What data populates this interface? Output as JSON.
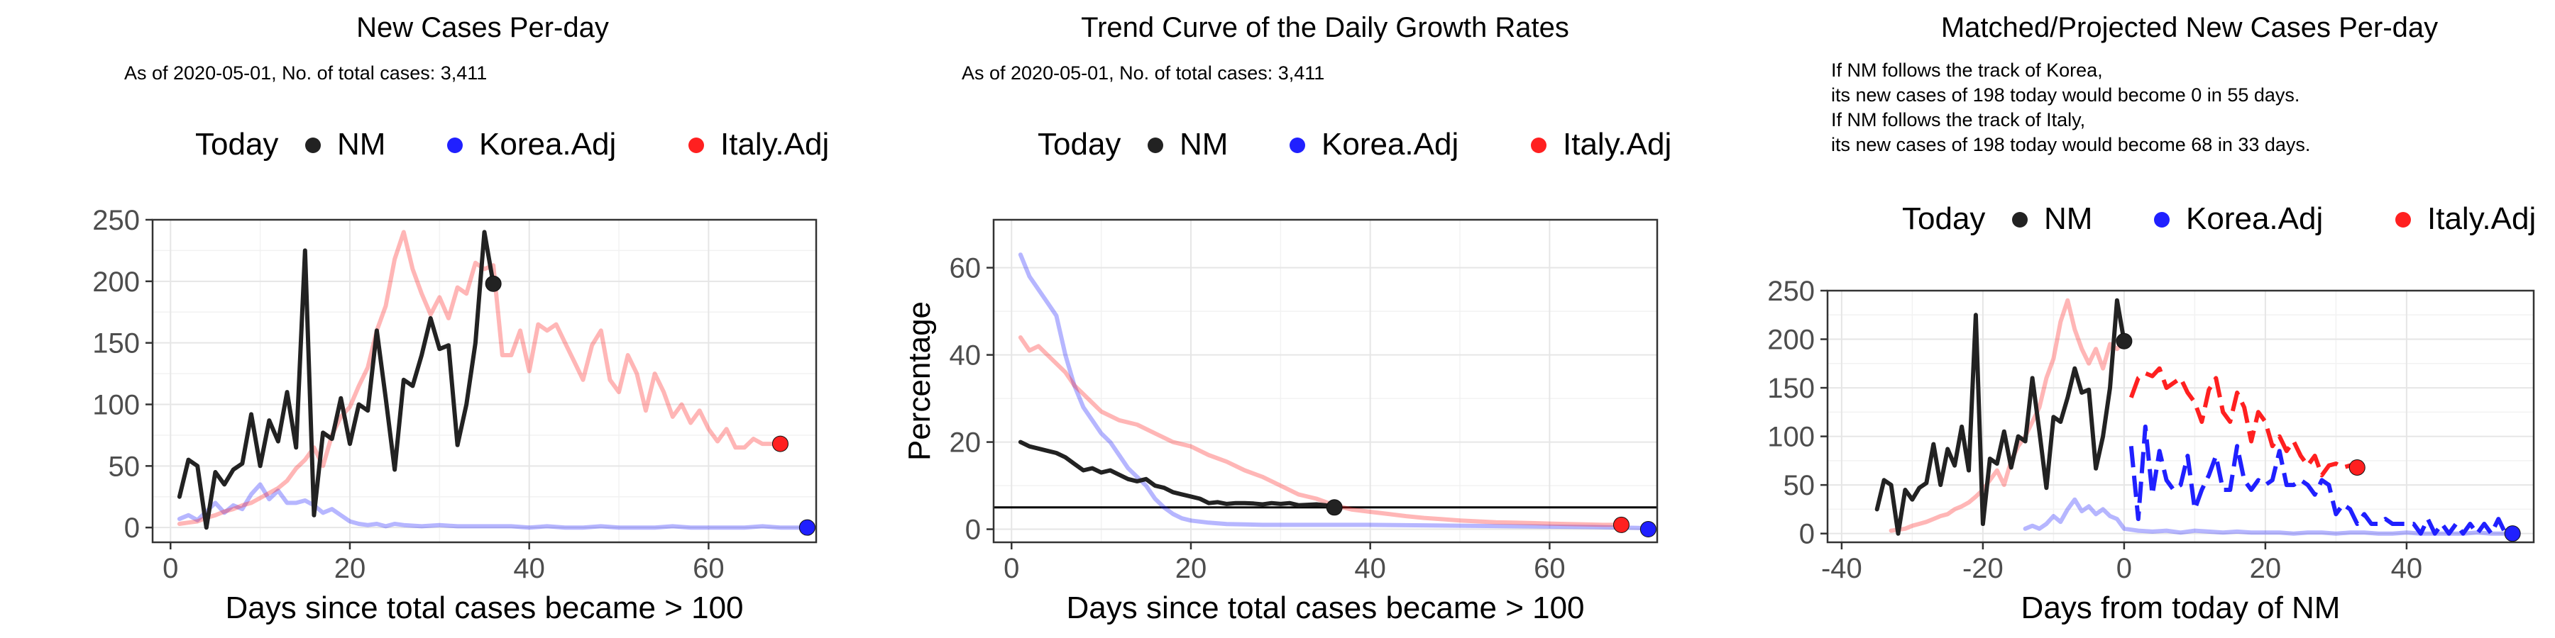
{
  "colors": {
    "nm": "#222222",
    "korea": "#2020ff",
    "italy": "#ff2020",
    "grid": "#e6e6e6",
    "legend_label": "#000000"
  },
  "legend_labels": [
    "Today",
    "NM",
    "Korea.Adj",
    "Italy.Adj"
  ],
  "chart_data": [
    {
      "type": "line",
      "title": "New Cases Per-day",
      "subtitle": [
        "As of 2020-05-01, No. of total cases: 3,411"
      ],
      "xlabel": "Days since total cases became > 100",
      "ylabel": "",
      "xlim": [
        -2,
        72
      ],
      "ylim": [
        -12,
        250
      ],
      "xticks": [
        0,
        20,
        40,
        60
      ],
      "yticks": [
        0,
        50,
        100,
        150,
        200,
        250
      ],
      "grid": true,
      "legend_position": "top",
      "series": [
        {
          "name": "NM",
          "style": "solid",
          "x": [
            1,
            2,
            3,
            4,
            5,
            6,
            7,
            8,
            9,
            10,
            11,
            12,
            13,
            14,
            15,
            16,
            17,
            18,
            19,
            20,
            21,
            22,
            23,
            24,
            25,
            26,
            27,
            28,
            29,
            30,
            31,
            32,
            33,
            34,
            35,
            36
          ],
          "y": [
            25,
            55,
            50,
            0,
            45,
            35,
            47,
            52,
            92,
            50,
            87,
            70,
            110,
            65,
            225,
            10,
            77,
            72,
            105,
            68,
            100,
            95,
            160,
            105,
            47,
            120,
            115,
            140,
            170,
            145,
            148,
            67,
            100,
            150,
            240,
            198
          ]
        },
        {
          "name": "Korea.Adj",
          "style": "faded",
          "x": [
            1,
            2,
            3,
            5,
            6,
            7,
            8,
            9,
            10,
            11,
            12,
            13,
            14,
            15,
            16,
            17,
            18,
            19,
            20,
            21,
            22,
            23,
            24,
            25,
            26,
            28,
            30,
            32,
            34,
            36,
            38,
            40,
            42,
            44,
            46,
            48,
            50,
            52,
            54,
            56,
            58,
            60,
            62,
            64,
            66,
            68,
            70,
            71
          ],
          "y": [
            7,
            10,
            6,
            20,
            12,
            18,
            15,
            27,
            35,
            23,
            30,
            20,
            20,
            22,
            18,
            12,
            15,
            10,
            5,
            3,
            2,
            3,
            1,
            3,
            2,
            1,
            2,
            1,
            1,
            1,
            1,
            0,
            1,
            0,
            0,
            1,
            0,
            0,
            0,
            1,
            0,
            0,
            0,
            0,
            1,
            0,
            0,
            0
          ]
        },
        {
          "name": "Italy.Adj",
          "style": "faded",
          "x": [
            1,
            2,
            3,
            4,
            5,
            6,
            7,
            8,
            9,
            10,
            11,
            12,
            13,
            14,
            15,
            16,
            17,
            18,
            19,
            20,
            21,
            22,
            23,
            24,
            25,
            26,
            27,
            28,
            29,
            30,
            31,
            32,
            33,
            34,
            35,
            36,
            37,
            38,
            39,
            40,
            41,
            42,
            43,
            44,
            45,
            46,
            47,
            48,
            49,
            50,
            51,
            52,
            53,
            54,
            55,
            56,
            57,
            58,
            59,
            60,
            61,
            62,
            63,
            64,
            65,
            66,
            67,
            68
          ],
          "y": [
            3,
            4,
            5,
            8,
            10,
            13,
            15,
            18,
            20,
            24,
            28,
            32,
            38,
            48,
            55,
            65,
            50,
            75,
            90,
            98,
            115,
            130,
            160,
            180,
            218,
            240,
            210,
            190,
            173,
            187,
            170,
            195,
            190,
            215,
            210,
            213,
            140,
            140,
            160,
            127,
            165,
            160,
            165,
            150,
            135,
            120,
            148,
            160,
            120,
            110,
            140,
            125,
            95,
            125,
            110,
            90,
            100,
            85,
            95,
            80,
            70,
            80,
            65,
            65,
            72,
            68,
            68,
            68
          ]
        },
        {
          "name": "Today",
          "style": "points",
          "x": [
            36,
            71,
            68
          ],
          "y": [
            198,
            0,
            68
          ],
          "colors": [
            "nm",
            "korea",
            "italy"
          ]
        }
      ]
    },
    {
      "type": "line",
      "title": "Trend Curve of the Daily Growth Rates",
      "subtitle": [
        "As of 2020-05-01, No. of total cases: 3,411"
      ],
      "xlabel": "Days since total cases became > 100",
      "ylabel": "Percentage",
      "xlim": [
        -2,
        72
      ],
      "ylim": [
        -3,
        71
      ],
      "xticks": [
        0,
        20,
        40,
        60
      ],
      "yticks": [
        0,
        20,
        40,
        60
      ],
      "hline": 5,
      "grid": true,
      "legend_position": "top",
      "series": [
        {
          "name": "NM",
          "style": "solid",
          "x": [
            1,
            2,
            3,
            4,
            5,
            6,
            7,
            8,
            9,
            10,
            11,
            12,
            13,
            14,
            15,
            16,
            17,
            18,
            19,
            20,
            21,
            22,
            23,
            24,
            25,
            26,
            27,
            28,
            29,
            30,
            31,
            32,
            33,
            34,
            35,
            36
          ],
          "y": [
            20,
            19,
            18.5,
            18,
            17.5,
            16.5,
            15,
            13.5,
            14,
            13,
            13.5,
            12.5,
            11.5,
            11,
            11.5,
            10,
            9.5,
            8.5,
            8,
            7.5,
            7,
            6,
            6.2,
            5.8,
            6,
            6,
            5.9,
            5.7,
            6,
            5.8,
            6,
            5.5,
            5.6,
            5.7,
            5.5,
            5
          ]
        },
        {
          "name": "Korea.Adj",
          "style": "faded",
          "x": [
            1,
            2,
            3,
            4,
            5,
            6,
            7,
            8,
            9,
            10,
            11,
            12,
            13,
            14,
            15,
            16,
            17,
            18,
            19,
            20,
            22,
            24,
            26,
            28,
            30,
            35,
            40,
            45,
            50,
            55,
            60,
            65,
            70,
            71
          ],
          "y": [
            63,
            58,
            55,
            52,
            49,
            40,
            33,
            28,
            25,
            22,
            20,
            17,
            14,
            12,
            10,
            7,
            5,
            3.5,
            2.5,
            2,
            1.5,
            1.2,
            1.1,
            1,
            1,
            1,
            1,
            0.9,
            0.8,
            0.7,
            0.6,
            0.5,
            0.3,
            0
          ]
        },
        {
          "name": "Italy.Adj",
          "style": "faded",
          "x": [
            1,
            2,
            3,
            4,
            5,
            6,
            7,
            8,
            9,
            10,
            12,
            14,
            16,
            18,
            20,
            22,
            24,
            26,
            28,
            30,
            32,
            34,
            36,
            38,
            40,
            42,
            44,
            46,
            48,
            50,
            52,
            54,
            56,
            58,
            60,
            62,
            64,
            66,
            68
          ],
          "y": [
            44,
            41,
            42,
            40,
            38,
            36,
            33,
            31,
            29,
            27,
            25,
            24,
            22,
            20,
            19,
            17,
            15.5,
            13.5,
            12,
            10,
            8,
            7,
            5.5,
            4.5,
            4,
            3.5,
            3,
            2.6,
            2.3,
            2,
            1.8,
            1.6,
            1.5,
            1.4,
            1.3,
            1.2,
            1.1,
            1,
            1
          ]
        },
        {
          "name": "Today",
          "style": "points",
          "x": [
            36,
            71,
            68
          ],
          "y": [
            5,
            0,
            1
          ],
          "colors": [
            "nm",
            "korea",
            "italy"
          ]
        }
      ]
    },
    {
      "type": "line",
      "title": "Matched/Projected New Cases Per-day",
      "subtitle": [
        "If NM follows the track of Korea,",
        "its new cases of 198 today would become 0 in 55 days.",
        "If NM follows the track of Italy,",
        "its new cases of 198 today would become 68 in 33 days."
      ],
      "xlabel": "Days from today of NM",
      "ylabel": "",
      "xlim": [
        -42,
        58
      ],
      "ylim": [
        -9,
        250
      ],
      "xticks": [
        -40,
        -20,
        0,
        20,
        40
      ],
      "yticks": [
        0,
        50,
        100,
        150,
        200,
        250
      ],
      "grid": true,
      "legend_position": "top",
      "series": [
        {
          "name": "NM",
          "style": "solid",
          "x": [
            -35,
            -34,
            -33,
            -32,
            -31,
            -30,
            -29,
            -28,
            -27,
            -26,
            -25,
            -24,
            -23,
            -22,
            -21,
            -20,
            -19,
            -18,
            -17,
            -16,
            -15,
            -14,
            -13,
            -12,
            -11,
            -10,
            -9,
            -8,
            -7,
            -6,
            -5,
            -4,
            -3,
            -2,
            -1,
            0
          ],
          "y": [
            25,
            55,
            50,
            0,
            45,
            35,
            47,
            52,
            92,
            50,
            87,
            70,
            110,
            65,
            225,
            10,
            77,
            72,
            105,
            68,
            100,
            95,
            160,
            105,
            47,
            120,
            115,
            140,
            170,
            145,
            148,
            67,
            100,
            150,
            240,
            198
          ]
        },
        {
          "name": "Korea.Adj",
          "style": "faded",
          "x": [
            -14,
            -13,
            -12,
            -11,
            -10,
            -9,
            -8,
            -7,
            -6,
            -5,
            -4,
            -3,
            -2,
            -1,
            0,
            2,
            4,
            6,
            8,
            10,
            12,
            14,
            16,
            18,
            20,
            22,
            24,
            26,
            28,
            30,
            32,
            34,
            36,
            38,
            40,
            42,
            44,
            46,
            48,
            50,
            52,
            54
          ],
          "y": [
            5,
            8,
            5,
            10,
            18,
            12,
            25,
            35,
            23,
            28,
            20,
            25,
            18,
            15,
            5,
            3,
            2,
            3,
            1,
            3,
            2,
            1,
            2,
            1,
            1,
            1,
            0,
            1,
            1,
            0,
            1,
            1,
            0,
            0,
            1,
            0,
            0,
            0,
            0,
            1,
            0,
            0
          ]
        },
        {
          "name": "Italy.Adj",
          "style": "faded",
          "x": [
            -33,
            -32,
            -31,
            -30,
            -29,
            -28,
            -27,
            -26,
            -25,
            -24,
            -23,
            -22,
            -21,
            -20,
            -19,
            -18,
            -17,
            -16,
            -15,
            -14,
            -13,
            -12,
            -11,
            -10,
            -9,
            -8,
            -7,
            -6,
            -5,
            -4,
            -3,
            -2,
            -1,
            0
          ],
          "y": [
            3,
            4,
            5,
            8,
            10,
            12,
            15,
            18,
            20,
            25,
            28,
            32,
            38,
            45,
            55,
            65,
            50,
            75,
            90,
            100,
            115,
            130,
            160,
            180,
            218,
            240,
            210,
            190,
            175,
            190,
            170,
            195,
            190,
            198
          ]
        },
        {
          "name": "Korea.Adj",
          "style": "dashed",
          "x": [
            1,
            2,
            3,
            4,
            5,
            6,
            7,
            8,
            9,
            10,
            11,
            12,
            13,
            14,
            15,
            16,
            17,
            18,
            19,
            20,
            21,
            22,
            23,
            24,
            25,
            26,
            27,
            28,
            29,
            30,
            31,
            32,
            33,
            34,
            35,
            36,
            37,
            38,
            39,
            40,
            41,
            42,
            43,
            44,
            45,
            46,
            47,
            48,
            49,
            50,
            51,
            52,
            53,
            54,
            55
          ],
          "y": [
            90,
            15,
            110,
            40,
            85,
            55,
            45,
            50,
            80,
            25,
            45,
            60,
            80,
            45,
            45,
            90,
            55,
            45,
            55,
            50,
            55,
            85,
            50,
            50,
            55,
            50,
            40,
            55,
            50,
            20,
            30,
            25,
            10,
            20,
            10,
            10,
            15,
            10,
            10,
            10,
            10,
            0,
            15,
            0,
            10,
            0,
            10,
            0,
            10,
            0,
            10,
            0,
            15,
            0,
            0
          ]
        },
        {
          "name": "Italy.Adj",
          "style": "dashed",
          "x": [
            1,
            2,
            3,
            4,
            5,
            6,
            7,
            8,
            9,
            10,
            11,
            12,
            13,
            14,
            15,
            16,
            17,
            18,
            19,
            20,
            21,
            22,
            23,
            24,
            25,
            26,
            27,
            28,
            29,
            30,
            31,
            32,
            33
          ],
          "y": [
            140,
            160,
            165,
            162,
            170,
            150,
            155,
            160,
            145,
            135,
            115,
            148,
            160,
            125,
            115,
            145,
            130,
            95,
            125,
            115,
            90,
            100,
            85,
            95,
            80,
            70,
            80,
            60,
            70,
            72,
            68,
            70,
            68
          ]
        },
        {
          "name": "Today",
          "style": "points",
          "x": [
            0,
            55,
            33
          ],
          "y": [
            198,
            0,
            68
          ],
          "colors": [
            "nm",
            "korea",
            "italy"
          ]
        }
      ]
    }
  ]
}
